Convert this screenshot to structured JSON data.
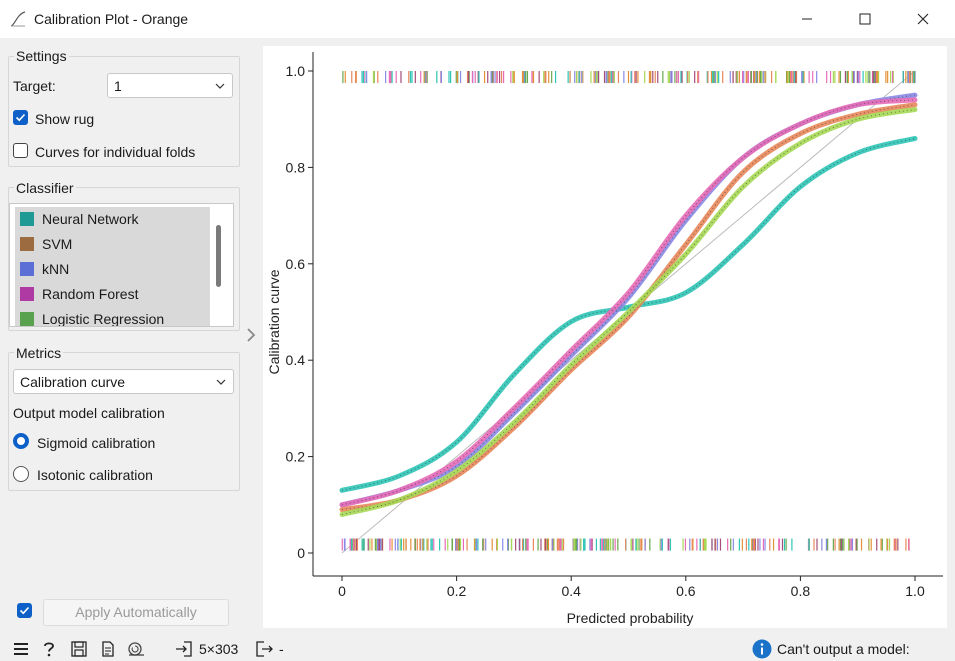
{
  "window": {
    "title": "Calibration Plot - Orange",
    "minimize_icon": "minimize-icon",
    "maximize_icon": "maximize-icon",
    "close_icon": "close-icon"
  },
  "settings": {
    "title": "Settings",
    "target_label": "Target:",
    "target_value": "1",
    "show_rug_label": "Show rug",
    "show_rug_checked": true,
    "folds_label": "Curves for individual folds",
    "folds_checked": false
  },
  "classifier": {
    "title": "Classifier",
    "items": [
      {
        "label": "Neural Network",
        "color": "#1f9a94"
      },
      {
        "label": "SVM",
        "color": "#9c6b3f"
      },
      {
        "label": "kNN",
        "color": "#5b6fd6"
      },
      {
        "label": "Random Forest",
        "color": "#b03aa4"
      },
      {
        "label": "Logistic Regression",
        "color": "#5aa14f"
      }
    ]
  },
  "metrics": {
    "title": "Metrics",
    "selected": "Calibration curve",
    "output_label": "Output model calibration",
    "sigmoid_label": "Sigmoid calibration",
    "sigmoid_selected": true,
    "isotonic_label": "Isotonic calibration",
    "isotonic_selected": false
  },
  "apply": {
    "label": "Apply Automatically",
    "checked": true
  },
  "statusbar": {
    "input_summary": "5×303",
    "output_summary": "-",
    "message": "Can't output a model:"
  },
  "chart_data": {
    "type": "line",
    "xlabel": "Predicted probability",
    "ylabel": "Calibration curve",
    "xlim": [
      0,
      1
    ],
    "ylim": [
      0,
      1
    ],
    "xticks": [
      "0",
      "0.2",
      "0.4",
      "0.6",
      "0.8",
      "1.0"
    ],
    "yticks": [
      "0",
      "0.2",
      "0.4",
      "0.6",
      "0.8",
      "1.0"
    ],
    "diagonal": true,
    "rug": true,
    "x": [
      0.0,
      0.1,
      0.2,
      0.3,
      0.4,
      0.5,
      0.6,
      0.7,
      0.8,
      0.9,
      1.0
    ],
    "series": [
      {
        "color": "#2ec4b6",
        "values": [
          0.13,
          0.16,
          0.23,
          0.37,
          0.48,
          0.51,
          0.54,
          0.64,
          0.76,
          0.83,
          0.86
        ]
      },
      {
        "color": "#e8875a",
        "values": [
          0.09,
          0.11,
          0.16,
          0.26,
          0.38,
          0.49,
          0.64,
          0.79,
          0.87,
          0.91,
          0.93
        ]
      },
      {
        "color": "#8a8ae6",
        "values": [
          0.1,
          0.13,
          0.18,
          0.29,
          0.41,
          0.53,
          0.69,
          0.82,
          0.89,
          0.93,
          0.95
        ]
      },
      {
        "color": "#e86db8",
        "values": [
          0.1,
          0.13,
          0.19,
          0.3,
          0.42,
          0.54,
          0.7,
          0.82,
          0.89,
          0.93,
          0.94
        ]
      },
      {
        "color": "#a6d854",
        "values": [
          0.08,
          0.11,
          0.17,
          0.27,
          0.39,
          0.5,
          0.62,
          0.76,
          0.85,
          0.9,
          0.92
        ]
      }
    ]
  }
}
